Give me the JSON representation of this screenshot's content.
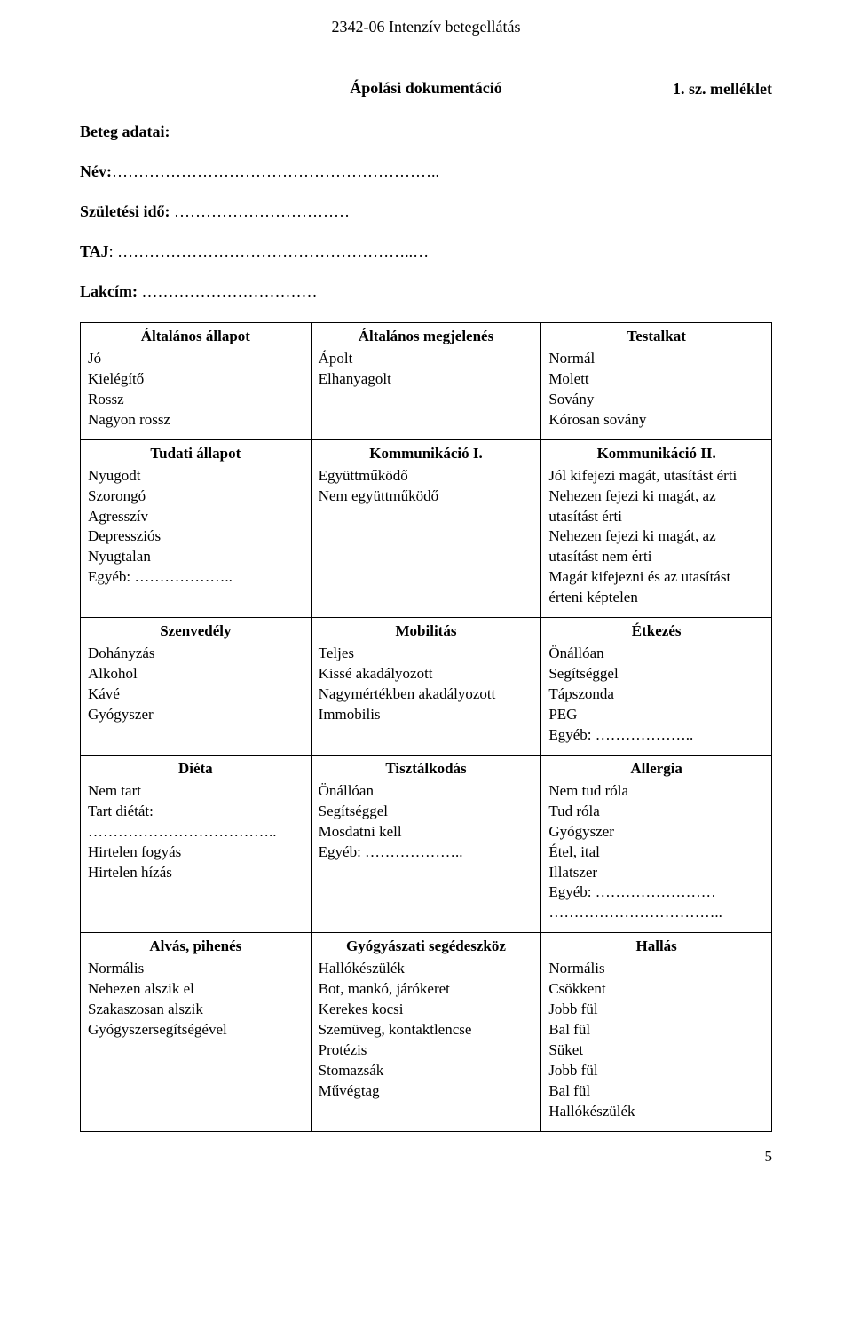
{
  "header": "2342-06 Intenzív betegellátás",
  "attachment_label": "1. sz. melléklet",
  "doc_title": "Ápolási dokumentáció",
  "patient_section_label": "Beteg adatai:",
  "fields": {
    "name_label": "Név:",
    "name_dots": "……………………………………………………..",
    "birth_label": "Születési idő:",
    "birth_dots": " ……………………………",
    "taj_label": "TAJ",
    "taj_dots": ": ………………………………………………..…",
    "address_label": "Lakcím:",
    "address_dots": " ……………………………"
  },
  "table": [
    [
      {
        "heading": "Általános állapot",
        "lines": [
          "Jó",
          "Kielégítő",
          "Rossz",
          "Nagyon rossz"
        ]
      },
      {
        "heading": "Általános megjelenés",
        "lines": [
          "Ápolt",
          "Elhanyagolt"
        ]
      },
      {
        "heading": "Testalkat",
        "lines": [
          "Normál",
          "Molett",
          "Sovány",
          "Kórosan sovány"
        ]
      }
    ],
    [
      {
        "heading": "Tudati állapot",
        "lines": [
          "Nyugodt",
          "Szorongó",
          "Agresszív",
          "Depressziós",
          "Nyugtalan",
          "Egyéb: ……………….."
        ]
      },
      {
        "heading": "Kommunikáció I.",
        "lines": [
          "Együttműködő",
          "Nem együttműködő"
        ]
      },
      {
        "heading": "Kommunikáció II.",
        "lines": [
          "Jól kifejezi magát, utasítást érti",
          "Nehezen fejezi ki magát, az utasítást érti",
          "Nehezen fejezi ki magát, az utasítást nem érti",
          "Magát kifejezni és az utasítást érteni képtelen"
        ]
      }
    ],
    [
      {
        "heading": "Szenvedély",
        "lines": [
          "Dohányzás",
          "Alkohol",
          "Kávé",
          "Gyógyszer"
        ]
      },
      {
        "heading": "Mobilitás",
        "lines": [
          "Teljes",
          "Kissé akadályozott",
          "Nagymértékben akadályozott",
          "Immobilis"
        ]
      },
      {
        "heading": "Étkezés",
        "lines": [
          "Önállóan",
          "Segítséggel",
          "Tápszonda",
          "PEG",
          "Egyéb: ……………….."
        ]
      }
    ],
    [
      {
        "heading": "Diéta",
        "lines": [
          "Nem tart",
          "Tart diétát:",
          "………………………………..",
          "Hirtelen fogyás",
          "Hirtelen hízás"
        ]
      },
      {
        "heading": "Tisztálkodás",
        "lines": [
          "Önállóan",
          "Segítséggel",
          "Mosdatni kell",
          "Egyéb: ……………….."
        ]
      },
      {
        "heading": "Allergia",
        "lines": [
          "Nem tud róla",
          "Tud róla",
          "Gyógyszer",
          "Étel, ital",
          "Illatszer",
          "Egyéb: ……………………",
          "…………………………….."
        ]
      }
    ],
    [
      {
        "heading": "Alvás, pihenés",
        "lines": [
          "Normális",
          "Nehezen alszik el",
          "Szakaszosan alszik",
          "Gyógyszersegítségével"
        ]
      },
      {
        "heading": "Gyógyászati segédeszköz",
        "lines": [
          "Hallókészülék",
          "Bot, mankó, járókeret",
          "Kerekes kocsi",
          "Szemüveg, kontaktlencse",
          "Protézis",
          "Stomazsák",
          "Művégtag"
        ]
      },
      {
        "heading": "Hallás",
        "lines": [
          "Normális",
          "Csökkent",
          "Jobb fül",
          "Bal fül",
          "Süket",
          "Jobb fül",
          "Bal fül",
          "Hallókészülék"
        ]
      }
    ]
  ],
  "page_number": "5"
}
